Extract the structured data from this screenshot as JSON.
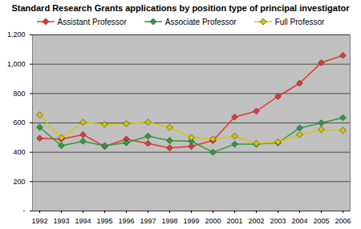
{
  "chart_data": {
    "type": "line",
    "title": "Standard Research Grants applications by position type of principal investigator",
    "categories": [
      "1992",
      "1993",
      "1994",
      "1995",
      "1996",
      "1997",
      "1998",
      "1999",
      "2000",
      "2001",
      "2002",
      "2003",
      "2004",
      "2005",
      "2006"
    ],
    "series": [
      {
        "name": "Assistant Professor",
        "color": "#e8382e",
        "marker": "diamond",
        "values": [
          495,
          490,
          520,
          440,
          490,
          460,
          430,
          440,
          480,
          640,
          680,
          780,
          870,
          1010,
          1060
        ]
      },
      {
        "name": "Associate Professor",
        "color": "#2e9e3a",
        "marker": "diamond",
        "values": [
          570,
          445,
          475,
          445,
          465,
          510,
          480,
          475,
          400,
          455,
          455,
          465,
          565,
          600,
          635
        ]
      },
      {
        "name": "Full Professor",
        "color": "#d8c400",
        "marker": "diamond",
        "values": [
          655,
          500,
          605,
          590,
          595,
          605,
          570,
          500,
          490,
          510,
          460,
          470,
          520,
          555,
          550
        ]
      }
    ],
    "ylim": [
      0,
      1200
    ],
    "yticks": [
      {
        "value": 0,
        "label": "-"
      },
      200,
      400,
      600,
      800,
      {
        "value": 1000,
        "label": "1,000"
      },
      {
        "value": 1200,
        "label": "1,200"
      }
    ],
    "grid": true,
    "legend": "top"
  }
}
